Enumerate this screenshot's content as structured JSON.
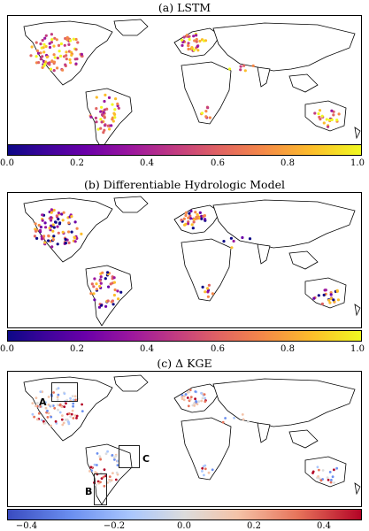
{
  "panels": [
    {
      "title": "(a) LSTM",
      "colorbar": "viridis",
      "ticks": [
        "0.0",
        "0.2",
        "0.4",
        "0.6",
        "0.8",
        "1.0"
      ]
    },
    {
      "title": "(b) Differentiable Hydrologic Model",
      "colorbar": "viridis",
      "ticks": [
        "0.0",
        "0.2",
        "0.4",
        "0.6",
        "0.8",
        "1.0"
      ]
    },
    {
      "title": "(c) Δ KGE",
      "colorbar": "diverge",
      "ticks": [
        "−0.4",
        "−0.2",
        "0.0",
        "0.2",
        "0.4"
      ]
    }
  ],
  "regions": {
    "a": "A",
    "b": "B",
    "c": "C"
  },
  "colors": {
    "land_outline": "#000000",
    "border": "#666666",
    "high": "#f0f921",
    "mid": "#e16462",
    "low": "#0d0887",
    "pos": "#b40426",
    "neg": "#3a4cc0"
  }
}
